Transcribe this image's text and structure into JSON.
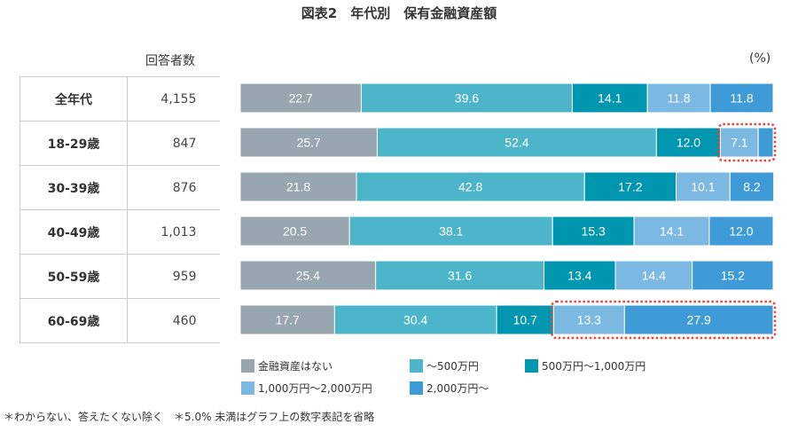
{
  "chart_data": {
    "type": "bar",
    "orientation": "horizontal",
    "stacked": true,
    "title": "図表2　年代別　保有金融資産額",
    "unit_label": "(%)",
    "xlim": [
      0,
      100
    ],
    "grid": false,
    "legend_position": "bottom",
    "table_header": "回答者数",
    "categories": [
      "全年代",
      "18-29歳",
      "30-39歳",
      "40-49歳",
      "50-59歳",
      "60-69歳"
    ],
    "respondents": [
      "4,155",
      "847",
      "876",
      "1,013",
      "959",
      "460"
    ],
    "series": [
      {
        "name": "金融資産はない",
        "color": "#98a6af",
        "values": [
          22.7,
          25.7,
          21.8,
          20.5,
          25.4,
          17.7
        ]
      },
      {
        "name": "～500万円",
        "color": "#4db5c9",
        "values": [
          39.6,
          52.4,
          42.8,
          38.1,
          31.6,
          30.4
        ]
      },
      {
        "name": "500万円～1,000万円",
        "color": "#0096b0",
        "values": [
          14.1,
          12.0,
          17.2,
          15.3,
          13.4,
          10.7
        ]
      },
      {
        "name": "1,000万円～2,000万円",
        "color": "#7bb9e3",
        "values": [
          11.8,
          7.1,
          10.1,
          14.1,
          14.4,
          13.3
        ]
      },
      {
        "name": "2,000万円～",
        "color": "#3f9bd7",
        "values": [
          11.8,
          2.8,
          8.2,
          12.0,
          15.2,
          27.9
        ]
      }
    ],
    "highlight_color": "#e8453c",
    "highlights": [
      {
        "category": "18-29歳",
        "series": [
          "1,000万円～2,000万円",
          "2,000万円～"
        ]
      },
      {
        "category": "60-69歳",
        "series": [
          "1,000万円～2,000万円",
          "2,000万円～"
        ]
      }
    ]
  },
  "footnote": "＊わからない、答えたくない除く　＊5.0% 未満はグラフ上の数字表記を省略"
}
